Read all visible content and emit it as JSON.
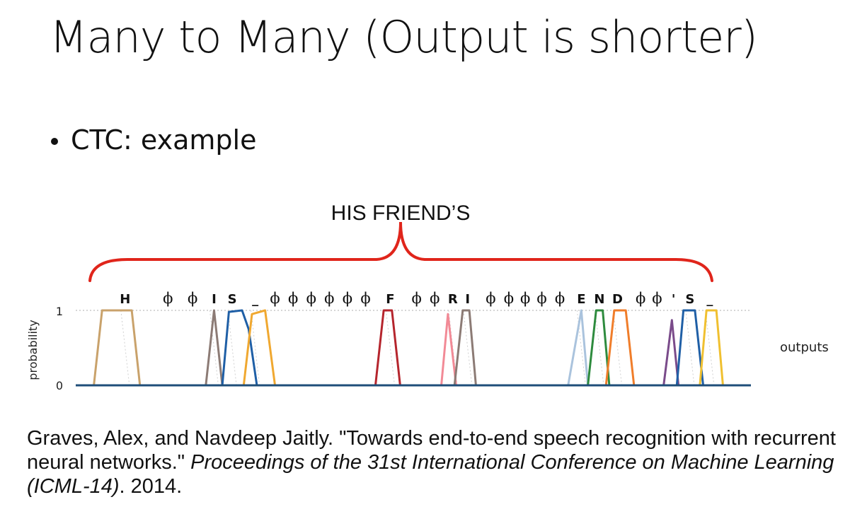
{
  "slide": {
    "title": "Many to Many (Output is shorter)",
    "bullet": "CTC: example"
  },
  "annotation": {
    "text": "HIS FRIEND’S",
    "brace_color": "#e0251b"
  },
  "chart_data": {
    "type": "line",
    "xlabel": "",
    "ylabel": "probability",
    "ylim": [
      0,
      1
    ],
    "yticks": [
      "0",
      "1"
    ],
    "outputs_label": "outputs",
    "labels": [
      {
        "text": "H",
        "bold": true,
        "frame": 3
      },
      {
        "text": "ϕ",
        "bold": false,
        "frame": 5.6
      },
      {
        "text": "ϕ",
        "bold": false,
        "frame": 7.1
      },
      {
        "text": "I",
        "bold": true,
        "frame": 8.4
      },
      {
        "text": "S",
        "bold": true,
        "frame": 9.5
      },
      {
        "text": "_",
        "bold": true,
        "frame": 10.9
      },
      {
        "text": "ϕ",
        "bold": false,
        "frame": 12.1
      },
      {
        "text": "ϕ",
        "bold": false,
        "frame": 13.2
      },
      {
        "text": "ϕ",
        "bold": false,
        "frame": 14.3
      },
      {
        "text": "ϕ",
        "bold": false,
        "frame": 15.4
      },
      {
        "text": "ϕ",
        "bold": false,
        "frame": 16.5
      },
      {
        "text": "ϕ",
        "bold": false,
        "frame": 17.6
      },
      {
        "text": "F",
        "bold": true,
        "frame": 19.1
      },
      {
        "text": "ϕ",
        "bold": false,
        "frame": 20.7
      },
      {
        "text": "ϕ",
        "bold": false,
        "frame": 21.8
      },
      {
        "text": "R",
        "bold": true,
        "frame": 22.9
      },
      {
        "text": "I",
        "bold": true,
        "frame": 23.8
      },
      {
        "text": "ϕ",
        "bold": false,
        "frame": 25.2
      },
      {
        "text": "ϕ",
        "bold": false,
        "frame": 26.3
      },
      {
        "text": "ϕ",
        "bold": false,
        "frame": 27.3
      },
      {
        "text": "ϕ",
        "bold": false,
        "frame": 28.3
      },
      {
        "text": "ϕ",
        "bold": false,
        "frame": 29.4
      },
      {
        "text": "E",
        "bold": true,
        "frame": 30.7
      },
      {
        "text": "N",
        "bold": true,
        "frame": 31.8
      },
      {
        "text": "D",
        "bold": true,
        "frame": 32.9
      },
      {
        "text": "ϕ",
        "bold": false,
        "frame": 34.3
      },
      {
        "text": "ϕ",
        "bold": false,
        "frame": 35.3
      },
      {
        "text": "'",
        "bold": true,
        "frame": 36.3
      },
      {
        "text": "S",
        "bold": true,
        "frame": 37.3
      },
      {
        "text": "_",
        "bold": true,
        "frame": 38.5
      }
    ],
    "series": [
      {
        "color": "#c9a26b",
        "x": [
          1.1,
          1.6,
          2.5,
          3.4,
          3.9
        ],
        "y": [
          0,
          1,
          1,
          1,
          0
        ]
      },
      {
        "color": "#8c7b75",
        "x": [
          7.9,
          8.4,
          8.9
        ],
        "y": [
          0,
          1,
          0
        ]
      },
      {
        "color": "#1f5fa6",
        "x": [
          8.9,
          9.3,
          10.1,
          10.5,
          11.0
        ],
        "y": [
          0,
          0.98,
          1,
          0.75,
          0
        ]
      },
      {
        "color": "#f0a830",
        "x": [
          10.2,
          10.7,
          11.5,
          12.1
        ],
        "y": [
          0,
          0.95,
          1,
          0
        ]
      },
      {
        "color": "#b5252d",
        "x": [
          18.2,
          18.7,
          19.2,
          19.7
        ],
        "y": [
          0,
          1,
          1,
          0
        ]
      },
      {
        "color": "#f28a96",
        "x": [
          22.2,
          22.6,
          23.1
        ],
        "y": [
          0,
          0.95,
          0
        ]
      },
      {
        "color": "#8c7b75",
        "x": [
          23.0,
          23.5,
          23.9,
          24.3
        ],
        "y": [
          0,
          1,
          1,
          0
        ]
      },
      {
        "color": "#aac3dd",
        "x": [
          29.9,
          30.7,
          31.1
        ],
        "y": [
          0,
          1,
          0
        ]
      },
      {
        "color": "#2e8b3e",
        "x": [
          31.1,
          31.6,
          32.0,
          32.4
        ],
        "y": [
          0,
          1,
          1,
          0
        ]
      },
      {
        "color": "#f07d2a",
        "x": [
          32.2,
          32.7,
          33.4,
          33.9
        ],
        "y": [
          0,
          1,
          1,
          0
        ]
      },
      {
        "color": "#7a4b8a",
        "x": [
          35.7,
          36.2,
          36.6
        ],
        "y": [
          0,
          0.87,
          0
        ]
      },
      {
        "color": "#1f5fa6",
        "x": [
          36.5,
          36.9,
          37.6,
          38.1
        ],
        "y": [
          0,
          1,
          1,
          0
        ]
      },
      {
        "color": "#f0c030",
        "x": [
          37.9,
          38.3,
          38.9,
          39.3
        ],
        "y": [
          0,
          1,
          1,
          0
        ]
      }
    ],
    "baseline_color": "#1f4e79",
    "xlim": [
      0,
      41
    ]
  },
  "reference": {
    "plain1": "Graves, Alex, and Navdeep Jaitly. \"Towards end-to-end speech recognition with recurrent neural networks.\" ",
    "italic": "Proceedings of the 31st International Conference on Machine Learning (ICML-14)",
    "plain2": ". 2014."
  }
}
